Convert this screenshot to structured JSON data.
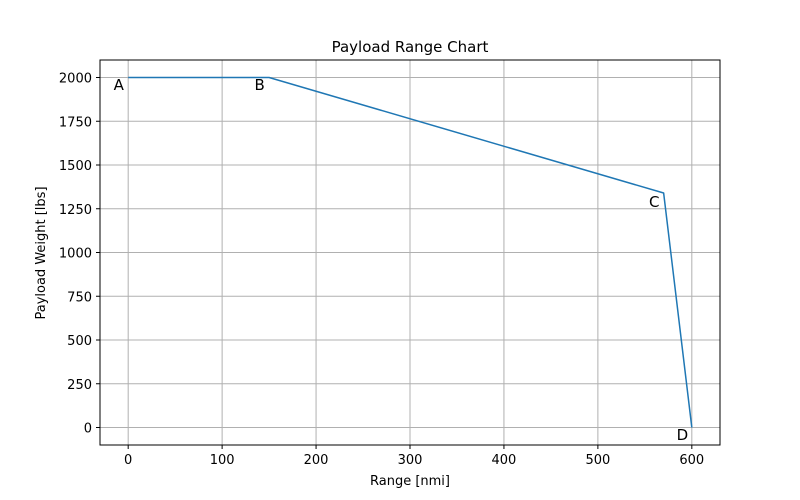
{
  "chart_data": {
    "type": "line",
    "title": "Payload Range Chart",
    "xlabel": "Range [nmi]",
    "ylabel": "Payload Weight [lbs]",
    "xlim": [
      -30,
      630
    ],
    "ylim": [
      -100,
      2100
    ],
    "xticks": [
      0,
      100,
      200,
      300,
      400,
      500,
      600
    ],
    "yticks": [
      0,
      250,
      500,
      750,
      1000,
      1250,
      1500,
      1750,
      2000
    ],
    "grid": true,
    "series": [
      {
        "color": "#1f77b4",
        "points": [
          {
            "x": 0,
            "y": 2000
          },
          {
            "x": 150,
            "y": 2000
          },
          {
            "x": 570,
            "y": 1340
          },
          {
            "x": 600,
            "y": 0
          }
        ]
      }
    ],
    "annotations": [
      {
        "text": "A",
        "x": -10,
        "y": 1930
      },
      {
        "text": "B",
        "x": 140,
        "y": 1930
      },
      {
        "text": "C",
        "x": 560,
        "y": 1260
      },
      {
        "text": "D",
        "x": 590,
        "y": -70
      }
    ]
  }
}
